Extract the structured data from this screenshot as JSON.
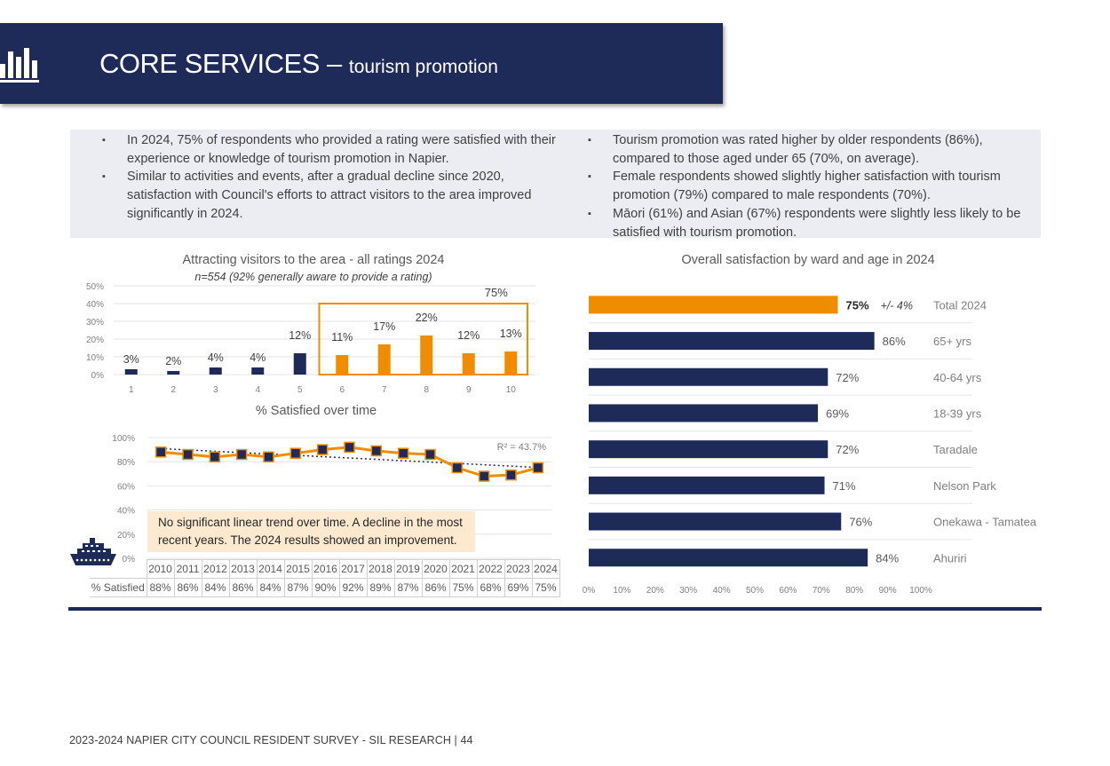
{
  "header": {
    "title_main": "CORE SERVICES – ",
    "title_sub": "tourism promotion",
    "icon": "bar-chart-icon"
  },
  "bullets_left": [
    "In 2024, 75% of respondents who provided a rating were satisfied with their experience or knowledge of tourism promotion in Napier.",
    "Similar to activities and events, after a gradual decline since 2020, satisfaction with Council's efforts to attract visitors to the area improved significantly in 2024."
  ],
  "bullets_right": [
    "Tourism promotion was rated higher by older respondents (86%), compared to those aged under 65 (70%, on average).",
    "Female respondents showed slightly higher satisfaction with tourism promotion (79%) compared to male respondents (70%).",
    "Māori (61%) and Asian (67%) respondents were slightly less likely to be satisfied with tourism promotion."
  ],
  "note": "No significant linear trend over time. A decline in the most recent years. The 2024 results showed an improvement.",
  "footer": "2023-2024 NAPIER CITY COUNCIL RESIDENT SURVEY - SIL RESEARCH | 44",
  "colors": {
    "navy": "#1e2b59",
    "orange": "#f08c00",
    "note_bg": "#fde9d0"
  },
  "chart_data": [
    {
      "type": "bar",
      "title": "Attracting visitors to the area - all ratings 2024",
      "subtitle": "n=554 (92% generally aware to provide a rating)",
      "categories": [
        "1",
        "2",
        "3",
        "4",
        "5",
        "6",
        "7",
        "8",
        "9",
        "10"
      ],
      "values": [
        3,
        2,
        4,
        4,
        12,
        11,
        17,
        22,
        12,
        13
      ],
      "labels": [
        "3%",
        "2%",
        "4%",
        "4%",
        "12%",
        "11%",
        "17%",
        "22%",
        "12%",
        "13%"
      ],
      "highlight_categories": [
        "6",
        "7",
        "8",
        "9",
        "10"
      ],
      "highlight_total": "75%",
      "yticks": [
        "0%",
        "10%",
        "20%",
        "30%",
        "40%",
        "50%"
      ],
      "ylim": [
        0,
        50
      ]
    },
    {
      "type": "line",
      "title": "% Satisfied over time",
      "row_label": "% Satisfied",
      "x": [
        "2010",
        "2011",
        "2012",
        "2013",
        "2014",
        "2015",
        "2016",
        "2017",
        "2018",
        "2019",
        "2020",
        "2021",
        "2022",
        "2023",
        "2024"
      ],
      "values": [
        88,
        86,
        84,
        86,
        84,
        87,
        90,
        92,
        89,
        87,
        86,
        75,
        68,
        69,
        75
      ],
      "labels": [
        "88%",
        "86%",
        "84%",
        "86%",
        "84%",
        "87%",
        "90%",
        "92%",
        "89%",
        "87%",
        "86%",
        "75%",
        "68%",
        "69%",
        "75%"
      ],
      "trendline": "linear (dotted)",
      "r2": "R² = 43.7%",
      "yticks": [
        "0%",
        "20%",
        "40%",
        "60%",
        "80%",
        "100%"
      ],
      "ylim": [
        0,
        100
      ]
    },
    {
      "type": "bar",
      "orientation": "horizontal",
      "title": "Overall satisfaction by ward and age in 2024",
      "categories": [
        "Total 2024",
        "65+ yrs",
        "40-64 yrs",
        "18-39 yrs",
        "Taradale",
        "Nelson Park",
        "Onekawa - Tamatea",
        "Ahuriri"
      ],
      "values": [
        75,
        86,
        72,
        69,
        72,
        71,
        76,
        84
      ],
      "labels": [
        "75%",
        "86%",
        "72%",
        "69%",
        "72%",
        "71%",
        "76%",
        "84%"
      ],
      "margin_of_error": "+/- 4%",
      "xticks": [
        "0%",
        "10%",
        "20%",
        "30%",
        "40%",
        "50%",
        "60%",
        "70%",
        "80%",
        "90%",
        "100%"
      ],
      "xlim": [
        0,
        100
      ]
    }
  ]
}
